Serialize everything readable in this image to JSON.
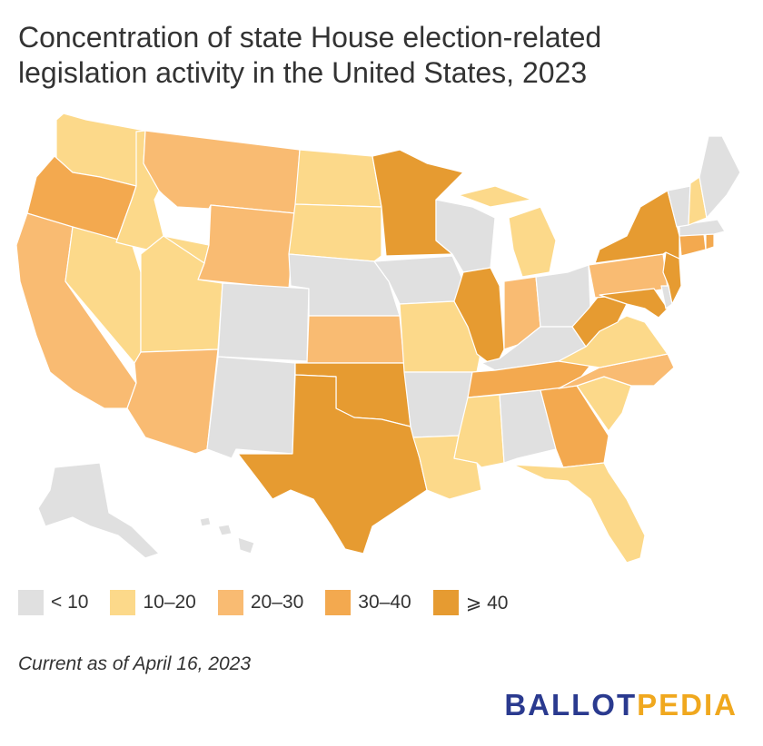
{
  "title": "Concentration of state House election-related legislation activity in the United States, 2023",
  "colors": {
    "lt10": "#e0e0e0",
    "b10_20": "#fcd98a",
    "b20_30": "#f9bb72",
    "b30_40": "#f3a94f",
    "gte40": "#e69b31"
  },
  "legend": [
    {
      "label": "< 10",
      "color": "#e0e0e0"
    },
    {
      "label": "10–20",
      "color": "#fcd98a"
    },
    {
      "label": "20–30",
      "color": "#f9bb72"
    },
    {
      "label": "30–40",
      "color": "#f3a94f"
    },
    {
      "label": "⩾ 40",
      "color": "#e69b31"
    }
  ],
  "note": "Current as of April 16, 2023",
  "brand": {
    "part1": "BALLOT",
    "part2": "PEDIA",
    "color1": "#2a3a8f",
    "color2": "#f0a81e"
  },
  "states": {
    "WA": "10–20",
    "OR": "30–40",
    "CA": "20–30",
    "NV": "10–20",
    "ID": "10–20",
    "MT": "20–30",
    "WY": "20–30",
    "UT": "10–20",
    "AZ": "20–30",
    "CO": "< 10",
    "NM": "< 10",
    "ND": "10–20",
    "SD": "10–20",
    "NE": "< 10",
    "KS": "20–30",
    "OK": "⩾ 40",
    "TX": "⩾ 40",
    "MN": "⩾ 40",
    "IA": "< 10",
    "MO": "10–20",
    "AR": "< 10",
    "LA": "10–20",
    "WI": "< 10",
    "IL": "⩾ 40",
    "MI": "10–20",
    "IN": "20–30",
    "OH": "< 10",
    "KY": "< 10",
    "TN": "30–40",
    "MS": "10–20",
    "AL": "< 10",
    "GA": "30–40",
    "FL": "10–20",
    "SC": "10–20",
    "NC": "20–30",
    "VA": "10–20",
    "WV": "⩾ 40",
    "MD": "⩾ 40",
    "DE": "< 10",
    "NJ": "⩾ 40",
    "PA": "20–30",
    "NY": "⩾ 40",
    "CT": "30–40",
    "RI": "30–40",
    "MA": "< 10",
    "VT": "< 10",
    "NH": "10–20",
    "ME": "< 10",
    "AK": "< 10",
    "HI": "< 10"
  }
}
